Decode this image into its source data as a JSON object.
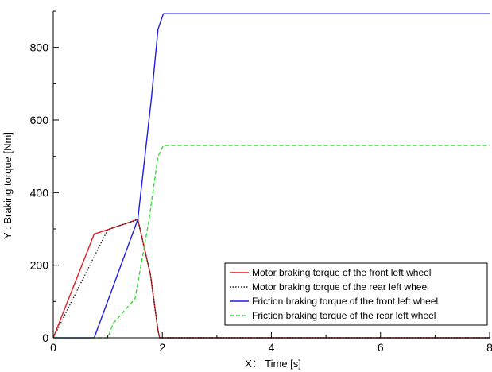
{
  "chart_data": {
    "type": "line",
    "xlabel": "X： Time [s]",
    "ylabel": "Y : Braking torque [Nm]",
    "xlim": [
      0,
      8
    ],
    "ylim": [
      0,
      900
    ],
    "x_ticks": [
      0,
      2,
      4,
      6,
      8
    ],
    "y_ticks": [
      0,
      200,
      400,
      600,
      800
    ],
    "x_tick_labels": [
      "0",
      "2",
      "4",
      "6",
      "8"
    ],
    "y_tick_labels": [
      "0",
      "200",
      "400",
      "600",
      "800"
    ],
    "grid": false,
    "legend_position": "bottom-right",
    "series": [
      {
        "name": "Motor braking torque of the front left wheel",
        "color": "#e8191c",
        "dash": "solid",
        "x": [
          0,
          0.75,
          1.0,
          1.55,
          1.78,
          1.92,
          1.95,
          8
        ],
        "y": [
          0,
          286,
          298,
          326,
          175,
          20,
          0,
          0
        ]
      },
      {
        "name": "Motor braking torque of the  rear left wheel",
        "color": "#222222",
        "dash": "dotted",
        "x": [
          0,
          1.0,
          1.55,
          1.78,
          1.92,
          1.95,
          8
        ],
        "y": [
          0,
          298,
          326,
          175,
          20,
          0,
          0
        ]
      },
      {
        "name": "Friction braking torque of the front left wheel",
        "color": "#1c1ce6",
        "dash": "solid",
        "x": [
          0,
          0.75,
          1.55,
          1.8,
          1.92,
          2.02,
          8
        ],
        "y": [
          0,
          0,
          326,
          660,
          850,
          893,
          893
        ]
      },
      {
        "name": "Friction braking torque of the rear left wheel",
        "color": "#33dd33",
        "dash": "dashed",
        "x": [
          0,
          1.0,
          1.1,
          1.5,
          1.75,
          1.92,
          2.02,
          8
        ],
        "y": [
          0,
          0,
          40,
          108,
          320,
          500,
          530,
          530
        ]
      }
    ]
  }
}
